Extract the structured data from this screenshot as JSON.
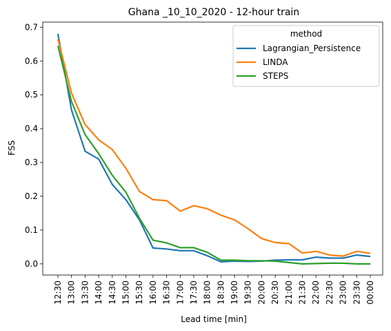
{
  "chart_data": {
    "type": "line",
    "title": "Ghana _10_10_2020 - 12-hour train",
    "xlabel": "Lead time [min]",
    "ylabel": "FSS",
    "ylim": [
      -0.033,
      0.715
    ],
    "yticks": [
      0.0,
      0.1,
      0.2,
      0.3,
      0.4,
      0.5,
      0.6,
      0.7
    ],
    "ytick_labels": [
      "0.0",
      "0.1",
      "0.2",
      "0.3",
      "0.4",
      "0.5",
      "0.6",
      "0.7"
    ],
    "grid": false,
    "legend": {
      "title": "method",
      "placement": "top-right"
    },
    "categories": [
      "12:30",
      "13:00",
      "13:30",
      "14:00",
      "14:30",
      "15:00",
      "15:30",
      "16:00",
      "16:30",
      "17:00",
      "17:30",
      "18:00",
      "18:30",
      "19:00",
      "19:30",
      "20:00",
      "20:30",
      "21:00",
      "21:30",
      "22:00",
      "22:30",
      "23:00",
      "23:30",
      "00:00"
    ],
    "series": [
      {
        "name": "Lagrangian_Persistence",
        "color": "#1f77b4",
        "values": [
          0.68,
          0.455,
          0.333,
          0.31,
          0.235,
          0.19,
          0.13,
          0.047,
          0.044,
          0.039,
          0.039,
          0.024,
          0.006,
          0.008,
          0.007,
          0.008,
          0.011,
          0.012,
          0.012,
          0.02,
          0.017,
          0.017,
          0.026,
          0.022
        ]
      },
      {
        "name": "LINDA",
        "color": "#ff7f0e",
        "values": [
          0.665,
          0.505,
          0.412,
          0.367,
          0.338,
          0.283,
          0.214,
          0.19,
          0.187,
          0.156,
          0.172,
          0.163,
          0.144,
          0.13,
          0.104,
          0.075,
          0.063,
          0.06,
          0.032,
          0.037,
          0.026,
          0.023,
          0.037,
          0.031
        ]
      },
      {
        "name": "STEPS",
        "color": "#2ca02c",
        "values": [
          0.645,
          0.48,
          0.382,
          0.326,
          0.262,
          0.212,
          0.135,
          0.07,
          0.062,
          0.048,
          0.048,
          0.034,
          0.011,
          0.011,
          0.009,
          0.009,
          0.008,
          0.004,
          0.0,
          0.001,
          0.002,
          0.002,
          0.0,
          0.0
        ]
      }
    ]
  }
}
